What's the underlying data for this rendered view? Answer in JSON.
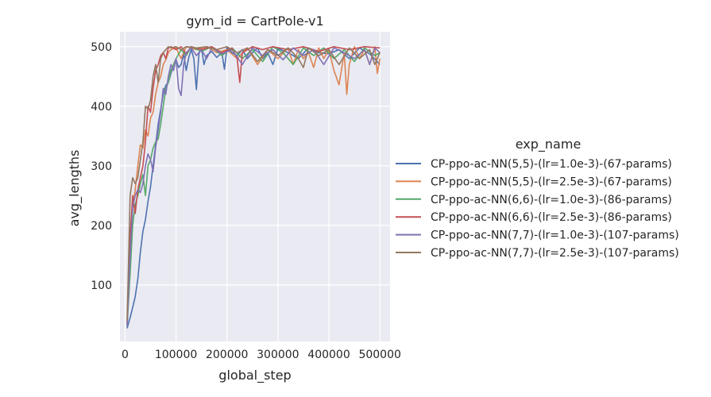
{
  "chart_data": {
    "type": "line",
    "title": "gym_id = CartPole-v1",
    "xlabel": "global_step",
    "ylabel": "avg_lengths",
    "xlim": [
      -10000,
      520000
    ],
    "ylim": [
      5,
      525
    ],
    "xticks": [
      0,
      100000,
      200000,
      300000,
      400000,
      500000
    ],
    "xtick_labels": [
      "0",
      "100000",
      "200000",
      "300000",
      "400000",
      "500000"
    ],
    "yticks": [
      100,
      200,
      300,
      400,
      500
    ],
    "ytick_labels": [
      "100",
      "200",
      "300",
      "400",
      "500"
    ],
    "grid": true,
    "legend": {
      "title": "exp_name",
      "placement": "right-outside"
    },
    "series": [
      {
        "name": "CP-ppo-ac-NN(5,5)-(lr=1.0e-3)-(67-params)",
        "color": "#4c72b0",
        "points": [
          [
            4000,
            27
          ],
          [
            10000,
            45
          ],
          [
            15000,
            62
          ],
          [
            20000,
            80
          ],
          [
            25000,
            110
          ],
          [
            30000,
            155
          ],
          [
            35000,
            190
          ],
          [
            40000,
            210
          ],
          [
            45000,
            240
          ],
          [
            50000,
            265
          ],
          [
            55000,
            300
          ],
          [
            60000,
            335
          ],
          [
            65000,
            370
          ],
          [
            70000,
            395
          ],
          [
            75000,
            420
          ],
          [
            80000,
            435
          ],
          [
            85000,
            440
          ],
          [
            90000,
            455
          ],
          [
            95000,
            470
          ],
          [
            100000,
            478
          ],
          [
            105000,
            465
          ],
          [
            110000,
            470
          ],
          [
            115000,
            488
          ],
          [
            120000,
            460
          ],
          [
            125000,
            482
          ],
          [
            130000,
            495
          ],
          [
            135000,
            480
          ],
          [
            140000,
            428
          ],
          [
            145000,
            488
          ],
          [
            150000,
            498
          ],
          [
            155000,
            470
          ],
          [
            160000,
            485
          ],
          [
            170000,
            492
          ],
          [
            180000,
            482
          ],
          [
            190000,
            490
          ],
          [
            195000,
            462
          ],
          [
            200000,
            498
          ],
          [
            210000,
            490
          ],
          [
            220000,
            485
          ],
          [
            230000,
            495
          ],
          [
            240000,
            480
          ],
          [
            250000,
            490
          ],
          [
            260000,
            498
          ],
          [
            270000,
            480
          ],
          [
            280000,
            490
          ],
          [
            290000,
            470
          ],
          [
            300000,
            497
          ],
          [
            320000,
            490
          ],
          [
            340000,
            480
          ],
          [
            360000,
            498
          ],
          [
            380000,
            490
          ],
          [
            400000,
            488
          ],
          [
            420000,
            495
          ],
          [
            440000,
            480
          ],
          [
            460000,
            498
          ],
          [
            480000,
            488
          ],
          [
            500000,
            470
          ]
        ]
      },
      {
        "name": "CP-ppo-ac-NN(5,5)-(lr=2.5e-3)-(67-params)",
        "color": "#dd8452",
        "points": [
          [
            4000,
            35
          ],
          [
            10000,
            150
          ],
          [
            15000,
            230
          ],
          [
            20000,
            260
          ],
          [
            25000,
            300
          ],
          [
            30000,
            335
          ],
          [
            35000,
            330
          ],
          [
            40000,
            360
          ],
          [
            45000,
            350
          ],
          [
            50000,
            380
          ],
          [
            55000,
            390
          ],
          [
            60000,
            420
          ],
          [
            65000,
            440
          ],
          [
            70000,
            450
          ],
          [
            75000,
            470
          ],
          [
            80000,
            478
          ],
          [
            85000,
            490
          ],
          [
            90000,
            495
          ],
          [
            100000,
            498
          ],
          [
            110000,
            480
          ],
          [
            120000,
            500
          ],
          [
            140000,
            495
          ],
          [
            160000,
            500
          ],
          [
            180000,
            490
          ],
          [
            200000,
            495
          ],
          [
            220000,
            480
          ],
          [
            240000,
            498
          ],
          [
            260000,
            470
          ],
          [
            280000,
            495
          ],
          [
            300000,
            480
          ],
          [
            320000,
            498
          ],
          [
            330000,
            470
          ],
          [
            340000,
            495
          ],
          [
            350000,
            480
          ],
          [
            360000,
            490
          ],
          [
            370000,
            465
          ],
          [
            380000,
            498
          ],
          [
            390000,
            480
          ],
          [
            400000,
            495
          ],
          [
            410000,
            460
          ],
          [
            420000,
            436
          ],
          [
            430000,
            490
          ],
          [
            435000,
            420
          ],
          [
            440000,
            470
          ],
          [
            450000,
            500
          ],
          [
            460000,
            480
          ],
          [
            470000,
            495
          ],
          [
            480000,
            470
          ],
          [
            490000,
            500
          ],
          [
            495000,
            455
          ],
          [
            500000,
            480
          ]
        ]
      },
      {
        "name": "CP-ppo-ac-NN(6,6)-(lr=1.0e-3)-(86-params)",
        "color": "#55a868",
        "points": [
          [
            4000,
            32
          ],
          [
            10000,
            120
          ],
          [
            15000,
            200
          ],
          [
            20000,
            235
          ],
          [
            25000,
            250
          ],
          [
            30000,
            270
          ],
          [
            35000,
            285
          ],
          [
            40000,
            250
          ],
          [
            45000,
            300
          ],
          [
            50000,
            310
          ],
          [
            55000,
            330
          ],
          [
            60000,
            340
          ],
          [
            65000,
            345
          ],
          [
            70000,
            370
          ],
          [
            75000,
            400
          ],
          [
            80000,
            430
          ],
          [
            85000,
            440
          ],
          [
            90000,
            460
          ],
          [
            95000,
            470
          ],
          [
            100000,
            480
          ],
          [
            110000,
            495
          ],
          [
            120000,
            485
          ],
          [
            130000,
            500
          ],
          [
            150000,
            492
          ],
          [
            170000,
            500
          ],
          [
            190000,
            485
          ],
          [
            210000,
            498
          ],
          [
            230000,
            480
          ],
          [
            250000,
            495
          ],
          [
            270000,
            475
          ],
          [
            290000,
            500
          ],
          [
            310000,
            490
          ],
          [
            330000,
            470
          ],
          [
            350000,
            498
          ],
          [
            370000,
            485
          ],
          [
            390000,
            498
          ],
          [
            410000,
            480
          ],
          [
            430000,
            495
          ],
          [
            450000,
            475
          ],
          [
            470000,
            498
          ],
          [
            490000,
            485
          ],
          [
            500000,
            490
          ]
        ]
      },
      {
        "name": "CP-ppo-ac-NN(6,6)-(lr=2.5e-3)-(86-params)",
        "color": "#c44e52",
        "points": [
          [
            4000,
            38
          ],
          [
            10000,
            180
          ],
          [
            15000,
            250
          ],
          [
            20000,
            220
          ],
          [
            25000,
            260
          ],
          [
            30000,
            280
          ],
          [
            35000,
            300
          ],
          [
            40000,
            340
          ],
          [
            45000,
            400
          ],
          [
            50000,
            390
          ],
          [
            55000,
            430
          ],
          [
            60000,
            460
          ],
          [
            65000,
            470
          ],
          [
            70000,
            485
          ],
          [
            75000,
            490
          ],
          [
            80000,
            480
          ],
          [
            85000,
            498
          ],
          [
            90000,
            500
          ],
          [
            100000,
            495
          ],
          [
            110000,
            500
          ],
          [
            120000,
            488
          ],
          [
            130000,
            500
          ],
          [
            150000,
            495
          ],
          [
            170000,
            500
          ],
          [
            190000,
            490
          ],
          [
            210000,
            498
          ],
          [
            220000,
            480
          ],
          [
            225000,
            440
          ],
          [
            230000,
            490
          ],
          [
            250000,
            500
          ],
          [
            270000,
            495
          ],
          [
            290000,
            500
          ],
          [
            320000,
            495
          ],
          [
            350000,
            500
          ],
          [
            380000,
            492
          ],
          [
            410000,
            500
          ],
          [
            440000,
            495
          ],
          [
            470000,
            500
          ],
          [
            500000,
            498
          ]
        ]
      },
      {
        "name": "CP-ppo-ac-NN(7,7)-(lr=1.0e-3)-(107-params)",
        "color": "#8172b3",
        "points": [
          [
            4000,
            30
          ],
          [
            10000,
            150
          ],
          [
            15000,
            230
          ],
          [
            20000,
            250
          ],
          [
            25000,
            260
          ],
          [
            30000,
            255
          ],
          [
            35000,
            270
          ],
          [
            40000,
            300
          ],
          [
            45000,
            320
          ],
          [
            50000,
            310
          ],
          [
            55000,
            290
          ],
          [
            60000,
            330
          ],
          [
            65000,
            360
          ],
          [
            70000,
            390
          ],
          [
            75000,
            430
          ],
          [
            80000,
            420
          ],
          [
            85000,
            450
          ],
          [
            90000,
            470
          ],
          [
            95000,
            460
          ],
          [
            100000,
            480
          ],
          [
            105000,
            430
          ],
          [
            110000,
            418
          ],
          [
            115000,
            470
          ],
          [
            120000,
            490
          ],
          [
            130000,
            498
          ],
          [
            140000,
            485
          ],
          [
            150000,
            495
          ],
          [
            160000,
            480
          ],
          [
            170000,
            498
          ],
          [
            190000,
            488
          ],
          [
            210000,
            495
          ],
          [
            230000,
            470
          ],
          [
            250000,
            498
          ],
          [
            270000,
            485
          ],
          [
            290000,
            495
          ],
          [
            310000,
            478
          ],
          [
            330000,
            498
          ],
          [
            350000,
            485
          ],
          [
            370000,
            495
          ],
          [
            390000,
            470
          ],
          [
            410000,
            498
          ],
          [
            430000,
            490
          ],
          [
            450000,
            480
          ],
          [
            470000,
            495
          ],
          [
            480000,
            470
          ],
          [
            490000,
            498
          ],
          [
            500000,
            490
          ]
        ]
      },
      {
        "name": "CP-ppo-ac-NN(7,7)-(lr=2.5e-3)-(107-params)",
        "color": "#937860",
        "points": [
          [
            4000,
            40
          ],
          [
            10000,
            250
          ],
          [
            15000,
            280
          ],
          [
            20000,
            270
          ],
          [
            25000,
            280
          ],
          [
            30000,
            310
          ],
          [
            35000,
            340
          ],
          [
            40000,
            400
          ],
          [
            45000,
            395
          ],
          [
            50000,
            410
          ],
          [
            55000,
            450
          ],
          [
            60000,
            470
          ],
          [
            65000,
            440
          ],
          [
            70000,
            480
          ],
          [
            75000,
            490
          ],
          [
            80000,
            495
          ],
          [
            85000,
            500
          ],
          [
            90000,
            498
          ],
          [
            100000,
            500
          ],
          [
            110000,
            495
          ],
          [
            120000,
            500
          ],
          [
            140000,
            498
          ],
          [
            160000,
            500
          ],
          [
            180000,
            495
          ],
          [
            200000,
            500
          ],
          [
            220000,
            490
          ],
          [
            240000,
            498
          ],
          [
            260000,
            475
          ],
          [
            280000,
            495
          ],
          [
            300000,
            485
          ],
          [
            320000,
            498
          ],
          [
            340000,
            480
          ],
          [
            350000,
            465
          ],
          [
            360000,
            498
          ],
          [
            380000,
            485
          ],
          [
            400000,
            495
          ],
          [
            420000,
            470
          ],
          [
            440000,
            498
          ],
          [
            460000,
            480
          ],
          [
            480000,
            495
          ],
          [
            490000,
            470
          ],
          [
            500000,
            490
          ]
        ]
      }
    ]
  }
}
